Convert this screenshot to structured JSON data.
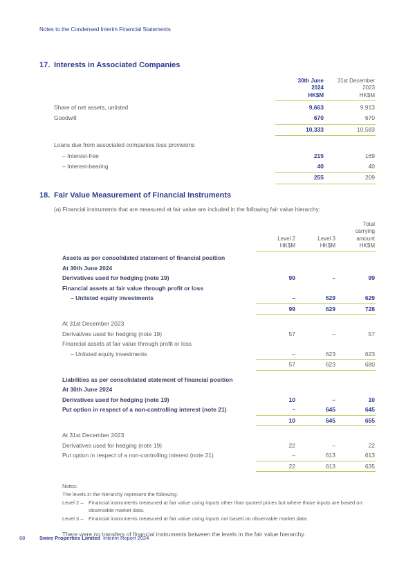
{
  "colors": {
    "navy": "#2b3a8f",
    "bold_label": "#3a3f63",
    "text_gray": "#595a5c",
    "header_gray": "#75767a",
    "rule_olive": "#c2c95a"
  },
  "page_header": "Notes to the Condensed Interim Financial Statements",
  "footer": {
    "page_number": "68",
    "company": "Swire Properties Limited",
    "report": "Interim Report 2024"
  },
  "section17": {
    "number": "17.",
    "title": "Interests in Associated Companies",
    "table": {
      "col_headers": [
        {
          "lines": "30th June\n2024\nHK$M",
          "bold": true
        },
        {
          "lines": "31st December\n2023\nHK$M",
          "bold": false
        }
      ],
      "bold_value_cols": [
        0
      ],
      "rows": [
        {
          "label": "Share of net assets, unlisted",
          "values": [
            "9,663",
            "9,913"
          ]
        },
        {
          "label": "Goodwill",
          "values": [
            "670",
            "670"
          ]
        },
        {
          "label": "",
          "values": [
            "10,333",
            "10,583"
          ],
          "total": true
        },
        {
          "label": "Loans due from associated companies less provisions",
          "gap": true
        },
        {
          "label": "– Interest-free",
          "indent": true,
          "values": [
            "215",
            "169"
          ]
        },
        {
          "label": "– Interest-bearing",
          "indent": true,
          "values": [
            "40",
            "40"
          ]
        },
        {
          "label": "",
          "values": [
            "255",
            "209"
          ],
          "total": true
        }
      ]
    }
  },
  "section18": {
    "number": "18.",
    "title": "Fair Value Measurement of Financial Instruments",
    "intro": "(a) Financial instruments that are measured at fair value are included in the following fair value hierarchy:",
    "table": {
      "col_headers": [
        {
          "lines": "Level 2\nHK$M",
          "bold": false
        },
        {
          "lines": "Level 3\nHK$M",
          "bold": false
        },
        {
          "lines": "Total\ncarrying\namount\nHK$M",
          "bold": false
        }
      ],
      "bold_value_cols": [],
      "rows": [
        {
          "label": "Assets as per consolidated statement of financial position",
          "bold": true
        },
        {
          "label": "At 30th June 2024",
          "bold": true
        },
        {
          "label": "Derivatives used for hedging (note 19)",
          "bold": true,
          "values": [
            "99",
            "–",
            "99"
          ]
        },
        {
          "label": "Financial assets at fair value through profit or loss",
          "bold": true
        },
        {
          "label": "– Unlisted equity investments",
          "indent": true,
          "bold": true,
          "values": [
            "–",
            "629",
            "629"
          ]
        },
        {
          "label": "",
          "values": [
            "99",
            "629",
            "728"
          ],
          "total": true,
          "bold": true
        },
        {
          "label": "At 31st December 2023",
          "gap": true
        },
        {
          "label": "Derivatives used for hedging (note 19)",
          "values": [
            "57",
            "–",
            "57"
          ]
        },
        {
          "label": "Financial assets at fair value through profit or loss"
        },
        {
          "label": "– Unlisted equity investments",
          "indent": true,
          "values": [
            "–",
            "623",
            "623"
          ]
        },
        {
          "label": "",
          "values": [
            "57",
            "623",
            "680"
          ],
          "total": true
        },
        {
          "label": "Liabilities as per consolidated statement of financial position",
          "bold": true,
          "gap": true
        },
        {
          "label": "At 30th June 2024",
          "bold": true
        },
        {
          "label": "Derivatives used for hedging (note 19)",
          "bold": true,
          "values": [
            "10",
            "–",
            "10"
          ]
        },
        {
          "label": "Put option in respect of a non-controlling interest (note 21)",
          "bold": true,
          "values": [
            "–",
            "645",
            "645"
          ]
        },
        {
          "label": "",
          "values": [
            "10",
            "645",
            "655"
          ],
          "total": true,
          "bold": true
        },
        {
          "label": "At 31st December 2023",
          "gap": true
        },
        {
          "label": "Derivatives used for hedging (note 19)",
          "values": [
            "22",
            "–",
            "22"
          ]
        },
        {
          "label": "Put option in respect of a non-controlling interest (note 21)",
          "values": [
            "–",
            "613",
            "613"
          ]
        },
        {
          "label": "",
          "values": [
            "22",
            "613",
            "635"
          ],
          "total": true
        }
      ]
    },
    "notes": {
      "title": "Notes:",
      "lead": "The levels in the hierarchy represent the following:",
      "items": [
        {
          "term": "Level 2 –",
          "text": "Financial instruments measured at fair value using inputs other than quoted prices but where those inputs are based on observable market data."
        },
        {
          "term": "Level 3 –",
          "text": "Financial instruments measured at fair value using inputs not based on observable market data."
        }
      ],
      "closing": "There were no transfers of financial instruments between the levels in the fair value hierarchy."
    }
  }
}
